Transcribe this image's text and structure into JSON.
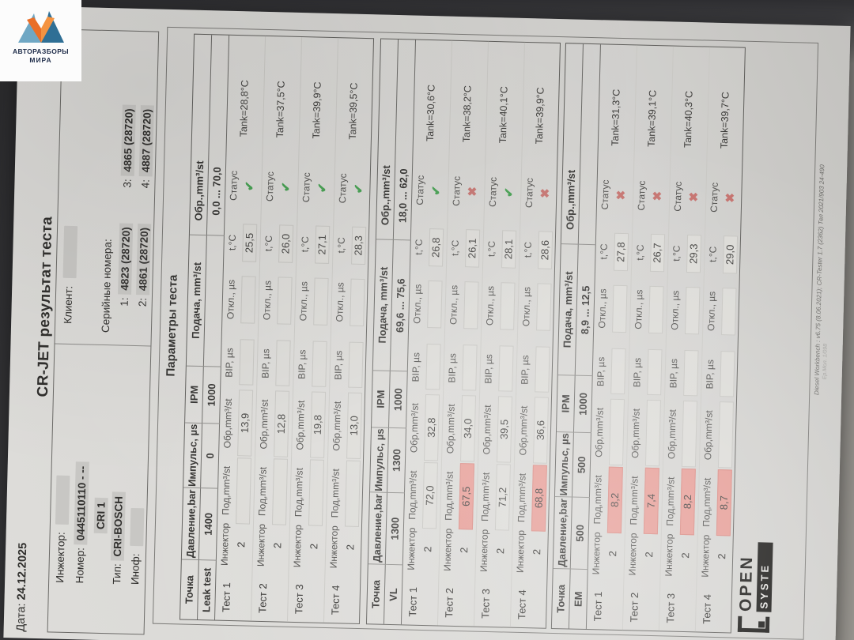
{
  "watermark": {
    "brand_line1": "АВТОРАЗБОРЫ",
    "brand_line2": "МИРА",
    "emblem": "mountain-arrows-logo",
    "colors": {
      "left_peak": "#6fa7c4",
      "right_peak": "#2f6f95",
      "arrow_left": "#e96f28",
      "arrow_right": "#f49341",
      "text": "#1e2c49"
    }
  },
  "doc": {
    "date_label": "Дата:",
    "date_value": "24.12.2025",
    "title": "CR-JET результат теста",
    "injector_label": "Инжектор:",
    "number_label": "Номер:",
    "number_value": "0445110110 - --",
    "cri_value": "CRI 1",
    "type_label": "Тип:",
    "type_value": "CRI-BOSCH",
    "info_label": "Иноф:",
    "client_label": "Клиент:",
    "serial_label": "Серийные номера:",
    "serials": [
      {
        "index": "1:",
        "value": "4823 (28720)"
      },
      {
        "index": "2:",
        "value": "4861 (28720)"
      },
      {
        "index": "3:",
        "value": "4865 (28720)"
      },
      {
        "index": "4:",
        "value": "4887 (28720)"
      }
    ],
    "section_heading": "Параметры теста",
    "column_headers": {
      "point": "Точка",
      "pressure": "Давление,bar",
      "impulse": "Импульс, µs",
      "ipm": "IPM",
      "supply": "Подача, mm³/st",
      "ret": "Обр.,mm³/st"
    },
    "row_labels": {
      "injector": "Инжектор",
      "supply": "Под,mm³/st",
      "ret": "Обр,mm³/st",
      "bip": "BIP, µs",
      "otkl": "Откл., µs",
      "temp": "t,°C",
      "status": "Статус"
    },
    "icons": {
      "pass": "✔",
      "fail": "✖"
    },
    "status_colors": {
      "pass": "#3f9d4b",
      "fail": "#c4706c",
      "highlight": "#e59992"
    },
    "tables": [
      {
        "point": "Leak test",
        "pressure": "1400",
        "impulse": "0",
        "ipm": "1000",
        "supply_range": "",
        "return_range": "0,0 ... 70,0",
        "tests": [
          {
            "name": "Тест 1",
            "injector": "2",
            "supply": "",
            "supply_fail": false,
            "ret": "13,9",
            "bip": "",
            "otkl": "",
            "temp": "25,5",
            "status": "pass",
            "tank": "Tank=28,8°C"
          },
          {
            "name": "Тест 2",
            "injector": "2",
            "supply": "",
            "supply_fail": false,
            "ret": "12,8",
            "bip": "",
            "otkl": "",
            "temp": "26,0",
            "status": "pass",
            "tank": "Tank=37,5°C"
          },
          {
            "name": "Тест 3",
            "injector": "2",
            "supply": "",
            "supply_fail": false,
            "ret": "19,8",
            "bip": "",
            "otkl": "",
            "temp": "27,1",
            "status": "pass",
            "tank": "Tank=39,9°C"
          },
          {
            "name": "Тест 4",
            "injector": "2",
            "supply": "",
            "supply_fail": false,
            "ret": "13,0",
            "bip": "",
            "otkl": "",
            "temp": "28,3",
            "status": "pass",
            "tank": "Tank=39,5°C"
          }
        ]
      },
      {
        "point": "VL",
        "pressure": "1300",
        "impulse": "1300",
        "ipm": "1000",
        "supply_range": "69,6 ... 75,6",
        "return_range": "18,0 ... 62,0",
        "tests": [
          {
            "name": "Тест 1",
            "injector": "2",
            "supply": "72,0",
            "supply_fail": false,
            "ret": "32,8",
            "bip": "",
            "otkl": "",
            "temp": "26,8",
            "status": "pass",
            "tank": "Tank=30,6°C"
          },
          {
            "name": "Тест 2",
            "injector": "2",
            "supply": "67,5",
            "supply_fail": true,
            "ret": "34,0",
            "bip": "",
            "otkl": "",
            "temp": "26,1",
            "status": "fail",
            "tank": "Tank=38,2°C"
          },
          {
            "name": "Тест 3",
            "injector": "2",
            "supply": "71,2",
            "supply_fail": false,
            "ret": "39,5",
            "bip": "",
            "otkl": "",
            "temp": "28,1",
            "status": "pass",
            "tank": "Tank=40,1°C"
          },
          {
            "name": "Тест 4",
            "injector": "2",
            "supply": "68,8",
            "supply_fail": true,
            "ret": "36,6",
            "bip": "",
            "otkl": "",
            "temp": "28,6",
            "status": "fail",
            "tank": "Tank=39,9°C"
          }
        ]
      },
      {
        "point": "EM",
        "pressure": "500",
        "impulse": "500",
        "ipm": "1000",
        "supply_range": "8,9 ... 12,5",
        "return_range": "",
        "tests": [
          {
            "name": "Тест 1",
            "injector": "2",
            "supply": "8,2",
            "supply_fail": true,
            "ret": "",
            "bip": "",
            "otkl": "",
            "temp": "27,8",
            "status": "fail",
            "tank": "Tank=31,3°C"
          },
          {
            "name": "Тест 2",
            "injector": "2",
            "supply": "7,4",
            "supply_fail": true,
            "ret": "",
            "bip": "",
            "otkl": "",
            "temp": "26,7",
            "status": "fail",
            "tank": "Tank=39,1°C"
          },
          {
            "name": "Тест 3",
            "injector": "2",
            "supply": "8,2",
            "supply_fail": true,
            "ret": "",
            "bip": "",
            "otkl": "",
            "temp": "29,3",
            "status": "fail",
            "tank": "Tank=40,3°C"
          },
          {
            "name": "Тест 4",
            "injector": "2",
            "supply": "8,7",
            "supply_fail": true,
            "ret": "",
            "bip": "",
            "otkl": "",
            "temp": "29,0",
            "status": "fail",
            "tank": "Tank=39,7°C"
          }
        ]
      }
    ],
    "fineprint_line1": "Diesel Workbench : v6.75 (8.06.2021); CR-Tester 1.7 (2362) Тел 2021/903 24-490",
    "fineprint_line2": "Ер.Мол. 1/098",
    "open_logo": {
      "line1": "OPEN",
      "line2": "SYSTE"
    }
  }
}
